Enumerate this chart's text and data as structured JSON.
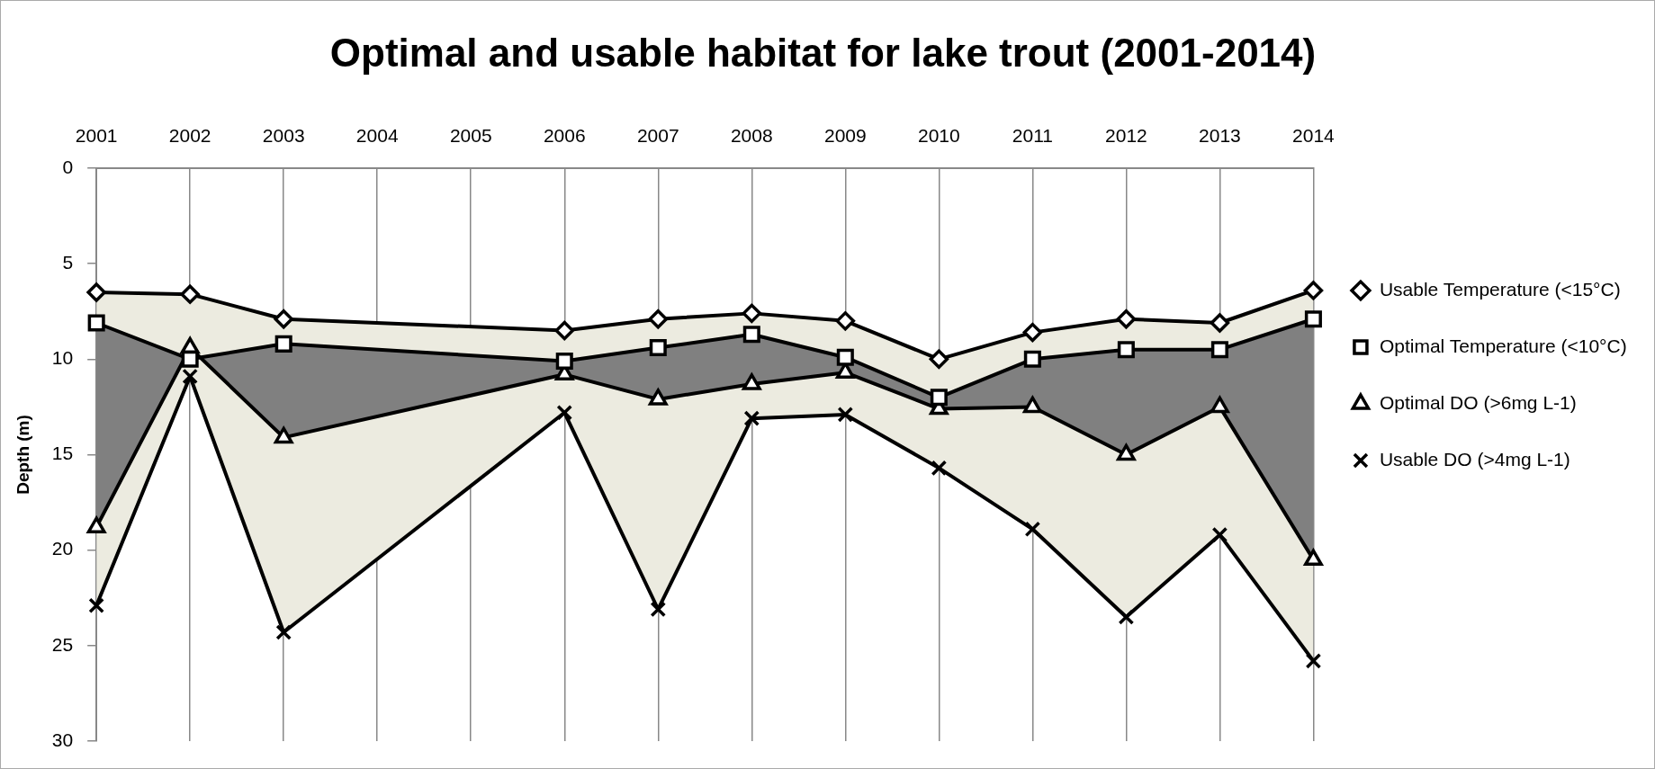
{
  "chart_data": {
    "type": "line",
    "title": "Optimal and usable habitat for lake trout (2001-2014)",
    "ylabel": "Depth (m)",
    "categories": [
      "2001",
      "2002",
      "2003",
      "2004",
      "2005",
      "2006",
      "2007",
      "2008",
      "2009",
      "2010",
      "2011",
      "2012",
      "2013",
      "2014"
    ],
    "series": [
      {
        "name": "Usable Temperature (<15°C)",
        "type": "line",
        "marker": "diamond",
        "color": "#000000",
        "values": [
          6.5,
          6.6,
          7.9,
          null,
          null,
          8.5,
          7.9,
          7.6,
          8.0,
          10.0,
          8.6,
          7.9,
          8.1,
          6.4
        ]
      },
      {
        "name": "Optimal Temperature (<10°C)",
        "type": "area",
        "marker": "square",
        "color": "#000000",
        "values": [
          8.1,
          10.0,
          9.2,
          null,
          null,
          10.1,
          9.4,
          8.7,
          9.9,
          12.0,
          10.0,
          9.5,
          9.5,
          7.9
        ]
      },
      {
        "name": "Optimal DO (>6mg L-1)",
        "type": "area",
        "marker": "triangle",
        "color": "#000000",
        "values": [
          18.8,
          9.4,
          14.1,
          null,
          null,
          10.8,
          12.1,
          11.3,
          10.7,
          12.6,
          12.5,
          15.0,
          12.5,
          20.5
        ]
      },
      {
        "name": "Usable DO (>4mg L-1)",
        "type": "area",
        "marker": "cross",
        "color": "#000000",
        "values": [
          22.9,
          10.9,
          24.3,
          null,
          null,
          12.8,
          23.1,
          13.1,
          12.9,
          15.7,
          18.9,
          23.5,
          19.2,
          25.8
        ]
      }
    ],
    "ylim": [
      30,
      0
    ],
    "yticks": [
      0,
      5,
      10,
      15,
      20,
      25,
      30
    ],
    "grid": "x",
    "legend": "right",
    "line_style": "solid"
  }
}
